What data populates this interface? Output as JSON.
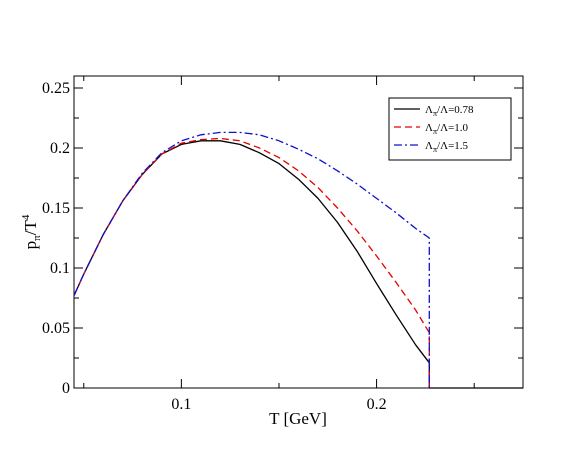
{
  "chart_data": {
    "type": "line",
    "xlabel": "T [GeV]",
    "ylabel": {
      "main": "p",
      "sub": "π",
      "slash": "/T",
      "sup": "4"
    },
    "xlim": [
      0.045,
      0.275
    ],
    "ylim": [
      0,
      0.26
    ],
    "x_ticks": [
      {
        "value": 0.1,
        "label": "0.1"
      },
      {
        "value": 0.2,
        "label": "0.2"
      }
    ],
    "x_minor_ticks": [
      0.05,
      0.15,
      0.25
    ],
    "y_ticks": [
      {
        "value": 0,
        "label": "0"
      },
      {
        "value": 0.05,
        "label": "0.05"
      },
      {
        "value": 0.1,
        "label": "0.1"
      },
      {
        "value": 0.15,
        "label": "0.15"
      },
      {
        "value": 0.2,
        "label": "0.2"
      },
      {
        "value": 0.25,
        "label": "0.25"
      }
    ],
    "y_minor_ticks": [
      0.025,
      0.075,
      0.125,
      0.175,
      0.225
    ],
    "grid": false,
    "legend_position": "top-right",
    "series": [
      {
        "legend": {
          "lam": "Λ",
          "sub": "π",
          "rest": "/Λ=0.78"
        },
        "color": "#000000",
        "dash": "solid",
        "x": [
          0.045,
          0.05,
          0.06,
          0.07,
          0.08,
          0.09,
          0.1,
          0.11,
          0.12,
          0.13,
          0.14,
          0.15,
          0.16,
          0.17,
          0.18,
          0.19,
          0.2,
          0.21,
          0.22,
          0.227,
          0.227,
          0.275
        ],
        "y": [
          0.077,
          0.095,
          0.128,
          0.156,
          0.178,
          0.195,
          0.203,
          0.206,
          0.206,
          0.203,
          0.196,
          0.187,
          0.174,
          0.158,
          0.138,
          0.114,
          0.087,
          0.061,
          0.036,
          0.021,
          0,
          0
        ]
      },
      {
        "legend": {
          "lam": "Λ",
          "sub": "π",
          "rest": "/Λ=1.0"
        },
        "color": "#e60000",
        "dash": "dashed",
        "x": [
          0.045,
          0.05,
          0.06,
          0.07,
          0.08,
          0.09,
          0.1,
          0.11,
          0.12,
          0.13,
          0.14,
          0.15,
          0.16,
          0.17,
          0.18,
          0.19,
          0.2,
          0.21,
          0.22,
          0.227,
          0.227
        ],
        "y": [
          0.077,
          0.095,
          0.128,
          0.156,
          0.178,
          0.195,
          0.204,
          0.207,
          0.208,
          0.206,
          0.2,
          0.192,
          0.181,
          0.167,
          0.15,
          0.131,
          0.11,
          0.088,
          0.065,
          0.046,
          0
        ]
      },
      {
        "legend": {
          "lam": "Λ",
          "sub": "π",
          "rest": "/Λ=1.5"
        },
        "color": "#1010d0",
        "dash": "dashdot",
        "x": [
          0.045,
          0.05,
          0.06,
          0.07,
          0.08,
          0.09,
          0.1,
          0.11,
          0.12,
          0.13,
          0.14,
          0.15,
          0.16,
          0.17,
          0.18,
          0.19,
          0.2,
          0.21,
          0.22,
          0.227,
          0.227
        ],
        "y": [
          0.077,
          0.095,
          0.128,
          0.156,
          0.179,
          0.196,
          0.206,
          0.211,
          0.213,
          0.213,
          0.211,
          0.206,
          0.199,
          0.191,
          0.181,
          0.17,
          0.158,
          0.146,
          0.133,
          0.125,
          0
        ]
      }
    ]
  }
}
